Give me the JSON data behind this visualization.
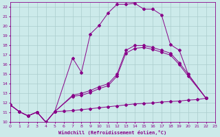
{
  "xlabel": "Windchill (Refroidissement éolien,°C)",
  "xlim": [
    0,
    23
  ],
  "ylim": [
    10,
    22.5
  ],
  "xticks": [
    0,
    1,
    2,
    3,
    4,
    5,
    6,
    7,
    8,
    9,
    10,
    11,
    12,
    13,
    14,
    15,
    16,
    17,
    18,
    19,
    20,
    21,
    22,
    23
  ],
  "yticks": [
    10,
    11,
    12,
    13,
    14,
    15,
    16,
    17,
    18,
    19,
    20,
    21,
    22
  ],
  "bg_color": "#cceaea",
  "grid_color": "#aacccc",
  "line_color": "#880088",
  "line1_x": [
    0,
    1,
    2,
    3,
    4,
    5,
    7,
    8,
    9,
    10,
    11,
    12,
    13,
    14,
    15,
    16,
    17,
    18,
    19,
    20,
    22
  ],
  "line1_y": [
    11.8,
    11.1,
    10.65,
    11.05,
    10.0,
    11.1,
    16.7,
    15.2,
    19.2,
    20.1,
    21.4,
    22.3,
    22.3,
    22.4,
    21.8,
    21.8,
    21.2,
    18.1,
    17.5,
    15.0,
    12.5
  ],
  "line2_x": [
    0,
    1,
    2,
    3,
    4,
    5,
    7,
    8,
    9,
    10,
    11,
    12,
    13,
    14,
    15,
    16,
    17,
    18,
    19,
    20,
    22
  ],
  "line2_y": [
    11.8,
    11.1,
    10.65,
    11.05,
    10.0,
    11.1,
    12.8,
    13.0,
    13.3,
    13.7,
    14.0,
    15.0,
    17.5,
    18.0,
    18.0,
    17.8,
    17.5,
    17.2,
    16.2,
    15.0,
    12.5
  ],
  "line3_x": [
    0,
    1,
    2,
    3,
    4,
    5,
    7,
    8,
    9,
    10,
    11,
    12,
    13,
    14,
    15,
    16,
    17,
    18,
    19,
    20,
    22
  ],
  "line3_y": [
    11.8,
    11.1,
    10.65,
    11.05,
    10.0,
    11.1,
    12.7,
    12.8,
    13.1,
    13.5,
    13.8,
    14.8,
    17.2,
    17.7,
    17.8,
    17.6,
    17.3,
    17.0,
    16.0,
    14.8,
    12.5
  ],
  "line4_x": [
    0,
    1,
    2,
    3,
    4,
    5,
    6,
    7,
    8,
    9,
    10,
    11,
    12,
    13,
    14,
    15,
    16,
    17,
    18,
    19,
    20,
    21,
    22
  ],
  "line4_y": [
    11.8,
    11.1,
    10.65,
    11.05,
    10.0,
    11.1,
    11.15,
    11.2,
    11.3,
    11.4,
    11.5,
    11.6,
    11.7,
    11.8,
    11.9,
    11.95,
    12.0,
    12.1,
    12.15,
    12.2,
    12.3,
    12.35,
    12.5
  ]
}
